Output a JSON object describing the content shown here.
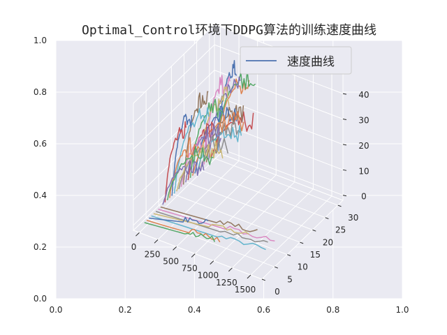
{
  "chart_data": {
    "type": "line",
    "subtype": "3d",
    "title": "Optimal_Control环境下DDPG算法的训练速度曲线",
    "outer_axes": {
      "xlim": [
        0,
        1
      ],
      "ylim": [
        0,
        1
      ],
      "xticks": [
        "0.0",
        "0.2",
        "0.4",
        "0.6",
        "0.8",
        "1.0"
      ],
      "yticks": [
        "0.0",
        "0.2",
        "0.4",
        "0.6",
        "0.8",
        "1.0"
      ]
    },
    "axes3d": {
      "x_ticks": [
        "0",
        "250",
        "500",
        "750",
        "1000",
        "1250",
        "1500"
      ],
      "x_tick_values": [
        0,
        250,
        500,
        750,
        1000,
        1250,
        1500
      ],
      "xlim": [
        -80,
        1650
      ],
      "y_ticks": [
        "0",
        "5",
        "10",
        "15",
        "20",
        "25",
        "30"
      ],
      "y_tick_values": [
        0,
        5,
        10,
        15,
        20,
        25,
        30
      ],
      "ylim": [
        0,
        32
      ],
      "z_ticks": [
        "0",
        "10",
        "20",
        "30",
        "40"
      ],
      "z_tick_values": [
        0,
        10,
        20,
        30,
        40
      ],
      "zlim": [
        -2,
        48
      ],
      "grid": true
    },
    "legend": {
      "entries": [
        "速度曲线"
      ],
      "placement": "upper-right",
      "color": "#4c72b0"
    },
    "series_count": 33,
    "colors": [
      "#4c72b0",
      "#dd8452",
      "#55a868",
      "#c44e52",
      "#8172b3",
      "#937860",
      "#da8bc3",
      "#8c8c8c",
      "#ccb974",
      "#64b5cd"
    ],
    "background": "#eaeaf2"
  }
}
